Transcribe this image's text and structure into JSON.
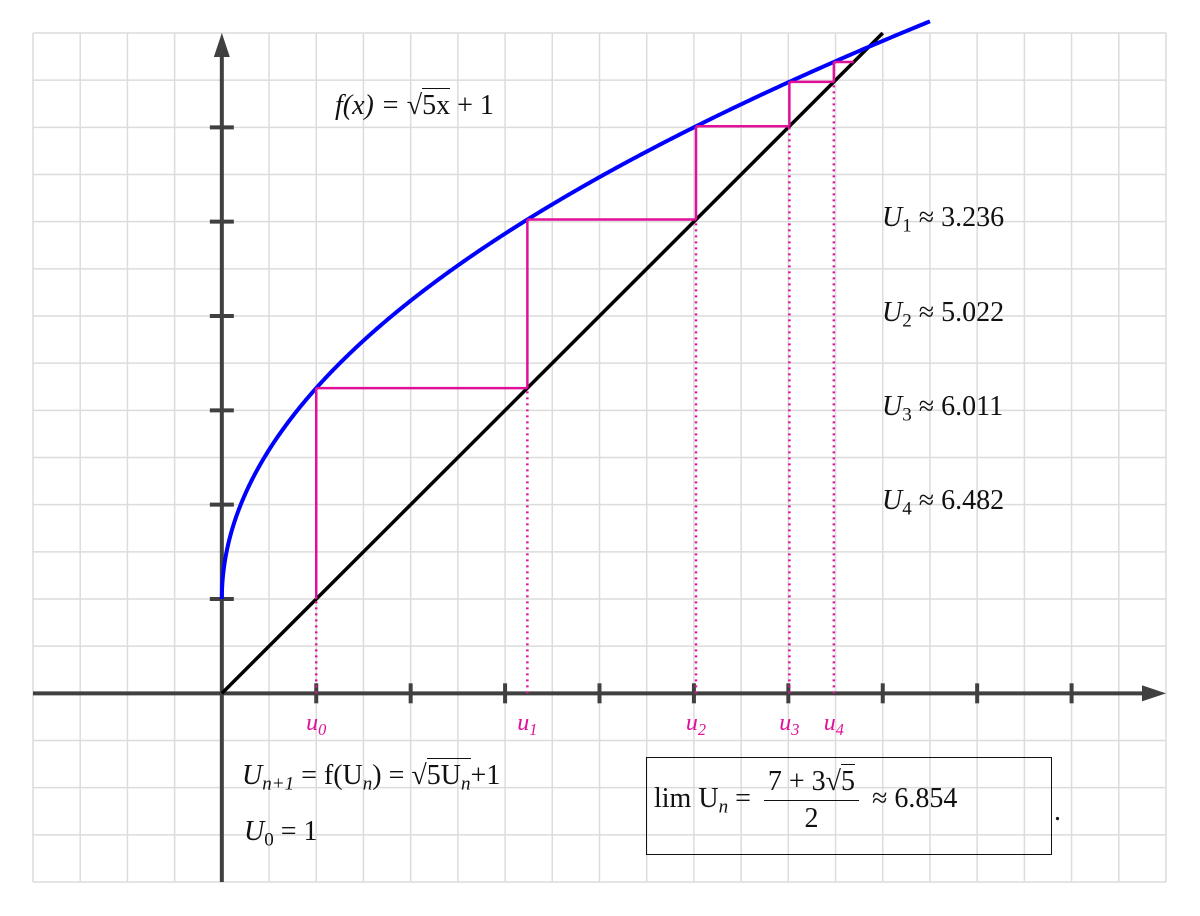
{
  "chart_data": {
    "type": "line",
    "title": "",
    "xlim": [
      -2,
      10
    ],
    "ylim": [
      -2,
      7
    ],
    "grid": true,
    "grid_step": 0.5,
    "tick_step": 1,
    "function_label": {
      "lhs": "f(x) =",
      "radicand": "5x",
      "rest": "+ 1"
    },
    "series": [
      {
        "expr": "sqrt(5x)+1",
        "color": "#0000ff"
      },
      {
        "expr": "x",
        "color": "#000000"
      }
    ],
    "cobweb": {
      "color": "#e0109a",
      "u": [
        1,
        3.236,
        5.022,
        6.011,
        6.482
      ],
      "x_tick_labels": [
        "u0",
        "u1",
        "u2",
        "u3",
        "u4"
      ]
    },
    "values_list": [
      {
        "name": "U",
        "index": "1",
        "value": "≈ 3.236"
      },
      {
        "name": "U",
        "index": "2",
        "value": "≈ 5.022"
      },
      {
        "name": "U",
        "index": "3",
        "value": "≈ 6.011"
      },
      {
        "name": "U",
        "index": "4",
        "value": "≈ 6.482"
      }
    ],
    "recurrence": {
      "lhs": "U",
      "lhs_index": "n+1",
      "mid": "= f(U",
      "mid_index": "n",
      "mid2": ") =",
      "radicand": "5U",
      "radicand_index": "n",
      "rest": "+1"
    },
    "initial": {
      "name": "U",
      "index": "0",
      "value": "= 1"
    },
    "limit": {
      "lhs": "lim U",
      "lhs_index": "n",
      "eq": "=",
      "num_a": "7 + 3",
      "num_rad": "5",
      "den": "2",
      "approx": "≈ 6.854",
      "end": "."
    }
  }
}
